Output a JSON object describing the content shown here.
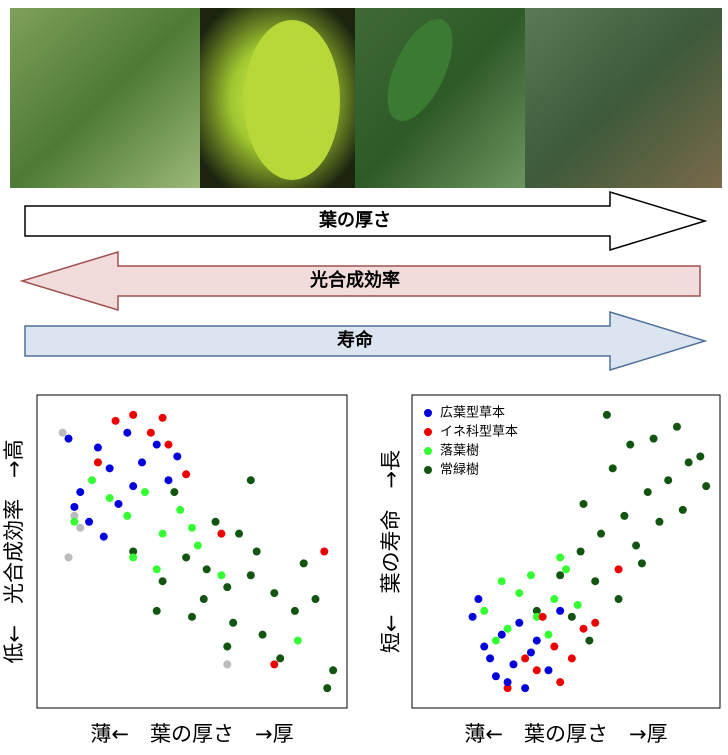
{
  "arrows": [
    {
      "label": "葉の厚さ"
    },
    {
      "label": "光合成効率"
    },
    {
      "label": "寿命"
    }
  ],
  "chart_data": [
    {
      "type": "scatter",
      "x_label": "薄←　葉の厚さ　→厚",
      "y_label": "低←　光合成効率　→高",
      "xlim": [
        0,
        100
      ],
      "ylim": [
        0,
        100
      ],
      "series": [
        {
          "color": "#0000dd",
          "x": [
            8,
            12,
            18,
            22,
            28,
            33,
            38,
            42,
            15,
            25,
            30,
            45,
            20,
            10
          ],
          "values": [
            88,
            70,
            85,
            78,
            90,
            80,
            86,
            74,
            60,
            66,
            72,
            82,
            55,
            65
          ]
        },
        {
          "color": "#ee0000",
          "x": [
            24,
            30,
            36,
            40,
            42,
            18,
            48,
            60,
            78,
            95
          ],
          "values": [
            94,
            96,
            90,
            95,
            86,
            80,
            76,
            56,
            12,
            50
          ]
        },
        {
          "color": "#33ff33",
          "x": [
            10,
            16,
            22,
            28,
            34,
            40,
            46,
            52,
            18,
            30,
            38,
            50,
            60,
            86
          ],
          "values": [
            60,
            74,
            68,
            62,
            70,
            56,
            64,
            52,
            80,
            48,
            44,
            58,
            42,
            20
          ]
        },
        {
          "color": "#115511",
          "x": [
            30,
            40,
            48,
            55,
            62,
            70,
            78,
            85,
            92,
            58,
            66,
            50,
            74,
            80,
            44,
            62,
            70,
            88,
            96,
            54,
            64,
            72,
            98,
            38
          ],
          "values": [
            50,
            40,
            48,
            44,
            38,
            42,
            36,
            30,
            34,
            60,
            56,
            28,
            22,
            14,
            70,
            18,
            74,
            46,
            4,
            34,
            26,
            50,
            10,
            30
          ]
        },
        {
          "color": "#bbbbbb",
          "x": [
            6,
            10,
            12,
            8,
            62
          ],
          "values": [
            90,
            62,
            58,
            48,
            12
          ]
        }
      ]
    },
    {
      "type": "scatter",
      "y_label": "短←　葉の寿命　→長",
      "x_label": "薄←　葉の厚さ　→厚",
      "xlim": [
        0,
        100
      ],
      "ylim": [
        0,
        100
      ],
      "legend": "upper left",
      "series": [
        {
          "name": "広葉型草本",
          "color": "#0000dd",
          "x": [
            18,
            22,
            28,
            32,
            38,
            26,
            34,
            40,
            24,
            30,
            44,
            48,
            36,
            20
          ],
          "values": [
            28,
            18,
            22,
            12,
            16,
            8,
            26,
            20,
            14,
            6,
            10,
            30,
            4,
            34
          ]
        },
        {
          "name": "イネ科型草本",
          "color": "#ee0000",
          "x": [
            30,
            40,
            46,
            52,
            56,
            60,
            36,
            48,
            68,
            42
          ],
          "values": [
            4,
            10,
            18,
            14,
            24,
            26,
            14,
            6,
            44,
            28
          ]
        },
        {
          "name": "落葉樹",
          "color": "#33ff33",
          "x": [
            22,
            28,
            34,
            40,
            46,
            50,
            30,
            38,
            44,
            54,
            26,
            48
          ],
          "values": [
            30,
            40,
            36,
            28,
            34,
            44,
            24,
            42,
            22,
            32,
            20,
            48
          ]
        },
        {
          "name": "常緑樹",
          "color": "#115511",
          "x": [
            40,
            48,
            55,
            62,
            70,
            78,
            85,
            92,
            60,
            66,
            72,
            80,
            88,
            74,
            56,
            64,
            98,
            96,
            68,
            52,
            82,
            90,
            76,
            58
          ],
          "values": [
            30,
            42,
            50,
            56,
            62,
            70,
            74,
            80,
            40,
            78,
            86,
            88,
            92,
            52,
            66,
            96,
            72,
            82,
            34,
            28,
            60,
            64,
            46,
            20
          ]
        }
      ]
    }
  ]
}
